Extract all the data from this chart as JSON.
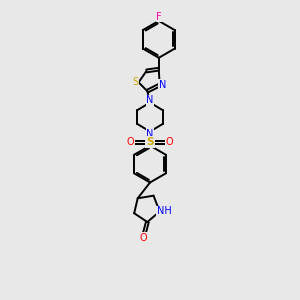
{
  "background_color": "#e8e8e8",
  "bond_color": "#000000",
  "atom_colors": {
    "N": "#0000ff",
    "S": "#ccaa00",
    "O": "#ff0000",
    "F": "#ff00aa",
    "H_color": "#000000"
  },
  "figsize": [
    3.0,
    3.0
  ],
  "dpi": 100,
  "xlim": [
    0,
    10
  ],
  "ylim": [
    0,
    17
  ]
}
